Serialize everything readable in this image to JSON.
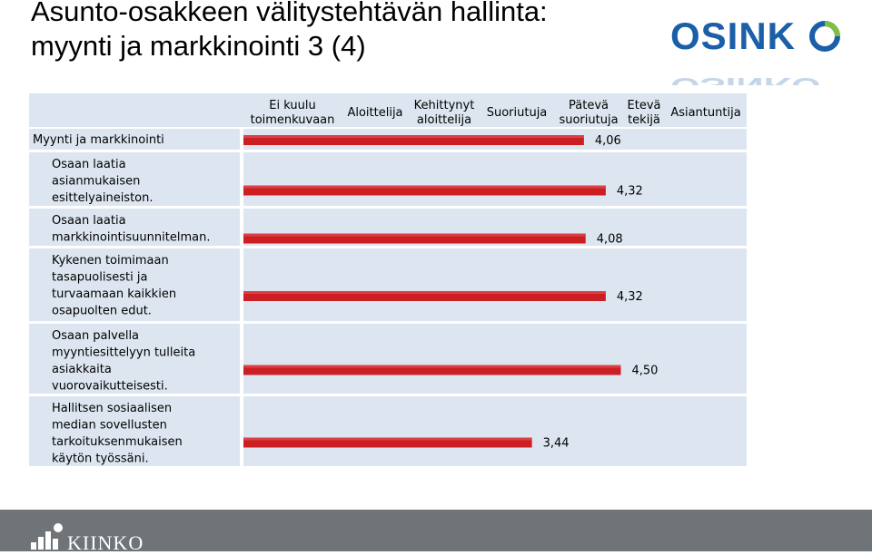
{
  "title": {
    "line1": "Asunto-osakkeen välitystehtävän hallinta:",
    "line2": "myynti ja markkinointi 3 (4)"
  },
  "logo_top": {
    "text": "OSINKO",
    "color": "#1a5fa8",
    "accent": "#7dc142"
  },
  "logo_bottom": {
    "text": "KIINKO"
  },
  "colors": {
    "bar": "#cc1f24",
    "panel": "#dde6f0",
    "grid": "#ffffff"
  },
  "chart_data": {
    "type": "bar",
    "orientation": "horizontal",
    "scale_labels": [
      [
        "Ei kuulu",
        "toimenkuvaan"
      ],
      [
        "Aloittelija"
      ],
      [
        "Kehittynyt",
        "aloittelija"
      ],
      [
        "Suoriutuja"
      ],
      [
        "Pätevä",
        "suoriutuja"
      ],
      [
        "Etevä",
        "tekijä"
      ],
      [
        "Asiantuntija"
      ]
    ],
    "categories": [
      [
        "Myynti ja markkinointi"
      ],
      [
        "Osaan laatia",
        "asianmukaisen",
        "esittelyaineiston."
      ],
      [
        "Osaan laatia",
        "markkinointisuunnitelman."
      ],
      [
        "Kykenen toimimaan",
        "tasapuolisesti ja",
        "turvaamaan kaikkien",
        "osapuolten edut."
      ],
      [
        "Osaan palvella",
        "myyntiesittelyyn tulleita",
        "asiakkaita",
        "vuorovaikutteisesti."
      ],
      [
        "Hallitsen sosiaalisen",
        "median sovellusten",
        "tarkoituksenmukaisen",
        "käytön työssäni."
      ]
    ],
    "values": [
      4.06,
      4.32,
      4.08,
      4.32,
      4.5,
      3.44
    ],
    "value_labels": [
      "4,06",
      "4,32",
      "4,08",
      "4,32",
      "4,50",
      "3,44"
    ],
    "xlim": [
      0,
      6
    ]
  }
}
